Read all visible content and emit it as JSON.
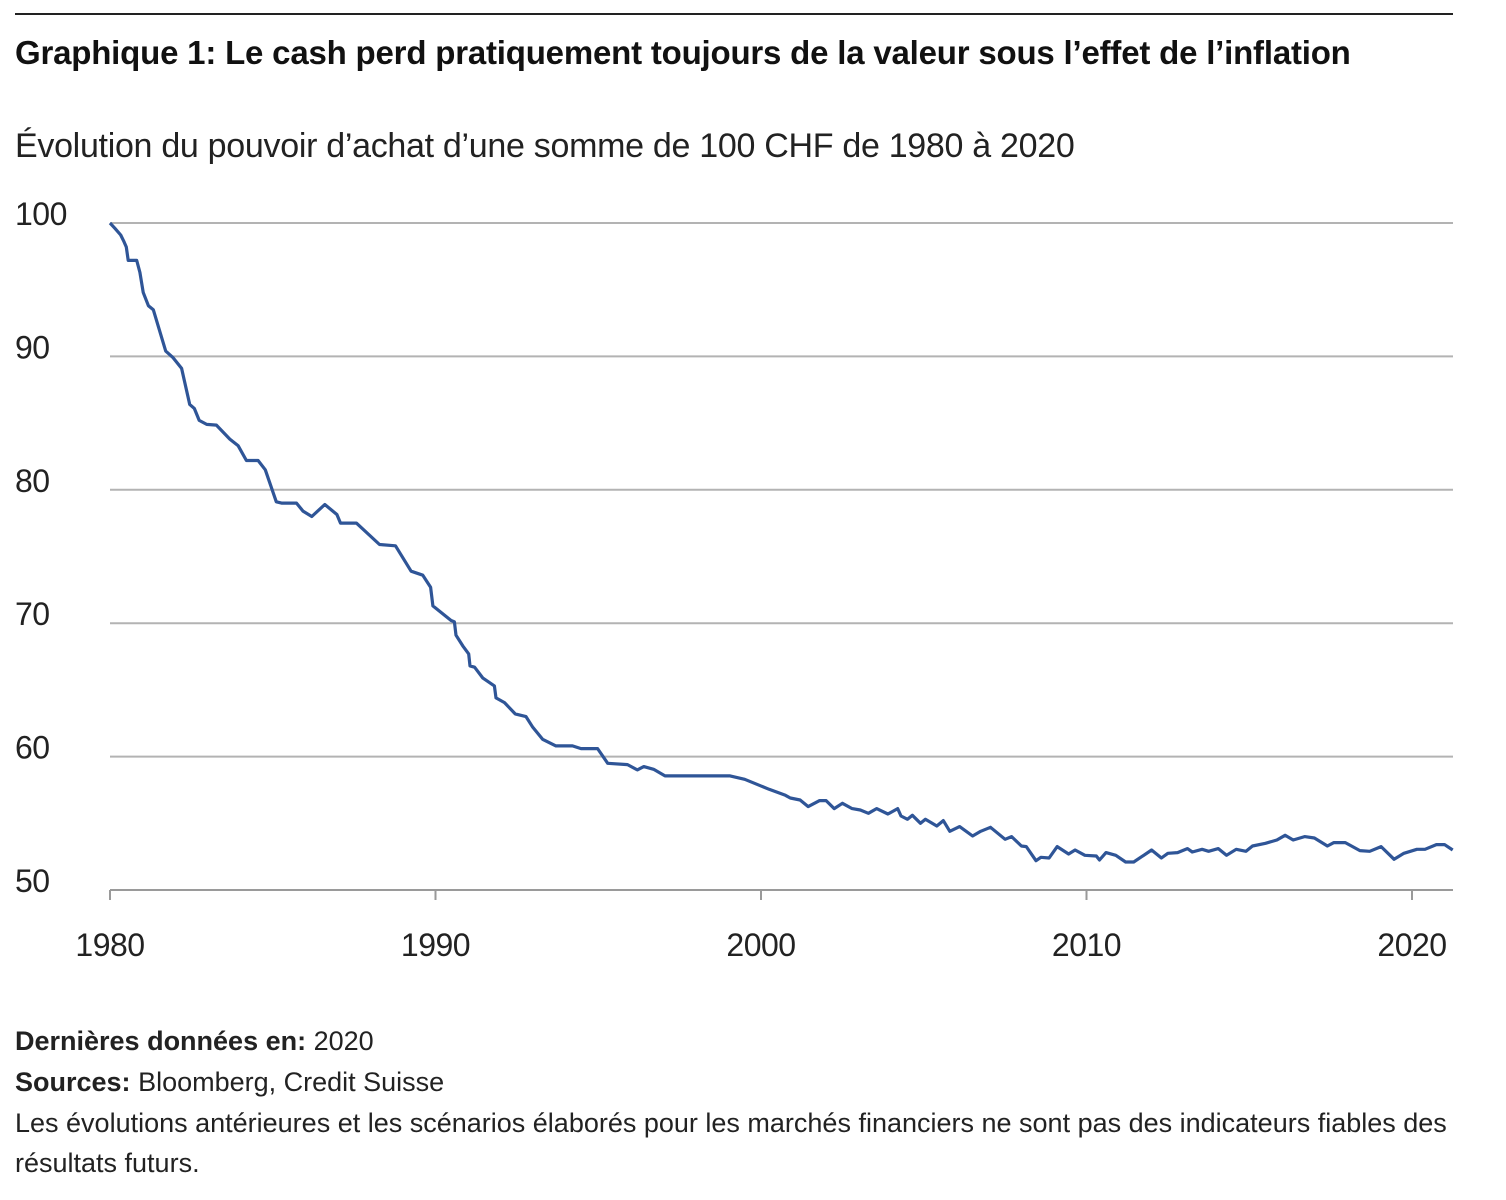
{
  "header": {
    "title": "Graphique 1: Le cash perd pratiquement toujours de la valeur sous l’effet de l’inflation",
    "subtitle": "Évolution du pouvoir d’achat d’une somme de 100 CHF de 1980 à 2020"
  },
  "footer": {
    "last_data_label": "Dernières données en:",
    "last_data_value": "2020",
    "sources_label": "Sources:",
    "sources_value": "Bloomberg, Credit Suisse",
    "disclaimer": "Les évolutions antérieures et les scénarios élaborés pour les marchés financiers ne sont pas des indicateurs fiables des résultats futurs."
  },
  "colors": {
    "line": "#2f5597",
    "grid": "#b3b3b3",
    "axis": "#9a9a9a"
  },
  "chart_data": {
    "type": "line",
    "title": "Graphique 1: Le cash perd pratiquement toujours de la valeur sous l’effet de l’inflation",
    "subtitle": "Évolution du pouvoir d’achat d’une somme de 100 CHF de 1980 à 2020",
    "xlabel": "",
    "ylabel": "",
    "xlim": [
      1980,
      2021.3
    ],
    "ylim": [
      50,
      100
    ],
    "x_ticks": [
      1980,
      1990,
      2000,
      2010,
      2020
    ],
    "x_tick_labels": [
      "1980",
      "1990",
      "2000",
      "2010",
      "2020"
    ],
    "y_ticks": [
      50,
      60,
      70,
      80,
      90,
      100
    ],
    "y_tick_labels": [
      "50",
      "60",
      "70",
      "80",
      "90",
      "100"
    ],
    "grid": "horizontal",
    "legend": "none",
    "series": [
      {
        "name": "Pouvoir d’achat de 100 CHF",
        "x": [
          1980,
          1980.15,
          1980.33,
          1980.43,
          1980.5,
          1980.56,
          1980.82,
          1980.92,
          1981.02,
          1981.18,
          1981.33,
          1981.71,
          1981.94,
          1982.2,
          1982.45,
          1982.59,
          1982.74,
          1982.97,
          1983.27,
          1983.68,
          1983.94,
          1984.19,
          1984.55,
          1984.77,
          1985.01,
          1985.11,
          1985.27,
          1985.73,
          1985.93,
          1986.2,
          1986.6,
          1986.97,
          1987.08,
          1987.57,
          1988.28,
          1988.77,
          1989.25,
          1989.61,
          1989.85,
          1989.92,
          1990.48,
          1990.58,
          1990.63,
          1990.84,
          1991.02,
          1991.06,
          1991.2,
          1991.45,
          1991.81,
          1991.86,
          1992.12,
          1992.45,
          1992.78,
          1992.99,
          1993.29,
          1993.7,
          1994.21,
          1994.47,
          1994.98,
          1995.29,
          1995.9,
          1996.2,
          1996.4,
          1996.7,
          1997.05,
          1999.05,
          1999.5,
          1999.8,
          2000.25,
          2000.75,
          2000.9,
          2001.2,
          2001.45,
          2001.8,
          2002.0,
          2002.25,
          2002.5,
          2002.8,
          2003.05,
          2003.3,
          2003.55,
          2003.9,
          2004.2,
          2004.3,
          2004.5,
          2004.65,
          2004.9,
          2005.05,
          2005.4,
          2005.6,
          2005.8,
          2006.1,
          2006.5,
          2006.75,
          2007.05,
          2007.5,
          2007.7,
          2008.0,
          2008.15,
          2008.45,
          2008.6,
          2008.85,
          2009.1,
          2009.45,
          2009.65,
          2009.95,
          2010.3,
          2010.4,
          2010.6,
          2010.9,
          2011.2,
          2011.45,
          2011.7,
          2012.0,
          2012.3,
          2012.5,
          2012.8,
          2013.1,
          2013.25,
          2013.55,
          2013.75,
          2014.05,
          2014.3,
          2014.6,
          2014.9,
          2015.1,
          2015.5,
          2015.85,
          2016.1,
          2016.35,
          2016.7,
          2017.0,
          2017.4,
          2017.6,
          2017.95,
          2018.4,
          2018.7,
          2019.05,
          2019.45,
          2019.75,
          2020.15,
          2020.4,
          2020.75,
          2021.0,
          2021.25
        ],
        "values": [
          100,
          99.6,
          99.1,
          98.6,
          98.2,
          97.2,
          97.2,
          96.3,
          94.8,
          93.8,
          93.5,
          90.4,
          89.9,
          89.1,
          86.4,
          86.1,
          85.2,
          84.9,
          84.85,
          83.8,
          83.3,
          82.2,
          82.2,
          81.5,
          79.8,
          79.1,
          79.0,
          79.0,
          78.4,
          78.0,
          78.9,
          78.15,
          77.5,
          77.5,
          75.9,
          75.8,
          73.9,
          73.6,
          72.7,
          71.3,
          70.2,
          70.1,
          69.1,
          68.3,
          67.7,
          66.8,
          66.7,
          65.9,
          65.3,
          64.4,
          64.05,
          63.2,
          63.0,
          62.2,
          61.3,
          60.8,
          60.8,
          60.6,
          60.6,
          59.5,
          59.4,
          59.0,
          59.25,
          59.05,
          58.55,
          58.55,
          58.3,
          58.0,
          57.55,
          57.1,
          56.9,
          56.75,
          56.25,
          56.7,
          56.7,
          56.1,
          56.5,
          56.1,
          56.0,
          55.75,
          56.1,
          55.7,
          56.1,
          55.55,
          55.3,
          55.6,
          55.0,
          55.3,
          54.8,
          55.2,
          54.4,
          54.75,
          54.05,
          54.4,
          54.7,
          53.8,
          54.0,
          53.3,
          53.25,
          52.2,
          52.45,
          52.4,
          53.25,
          52.7,
          53.0,
          52.6,
          52.55,
          52.25,
          52.8,
          52.6,
          52.1,
          52.1,
          52.5,
          53.0,
          52.4,
          52.75,
          52.8,
          53.1,
          52.85,
          53.05,
          52.9,
          53.1,
          52.6,
          53.05,
          52.9,
          53.3,
          53.5,
          53.75,
          54.1,
          53.75,
          54.0,
          53.9,
          53.3,
          53.55,
          53.55,
          52.95,
          52.9,
          53.25,
          52.3,
          52.75,
          53.05,
          53.05,
          53.4,
          53.4,
          53.0
        ]
      }
    ]
  }
}
